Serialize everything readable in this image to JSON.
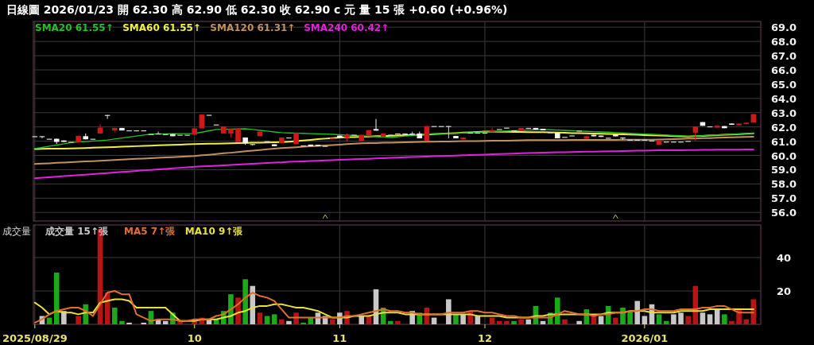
{
  "chart_data": [
    {
      "type": "candlestick",
      "title": "日線圖  2026/01/23  開 62.30  高 62.90  低 62.30  收 62.90 c 元  量 15 張  +0.60 (+0.96%)",
      "categories": [
        "2025/08/29",
        null,
        null,
        null,
        null,
        null,
        null,
        null,
        null,
        null,
        null,
        null,
        null,
        null,
        null,
        null,
        null,
        null,
        null,
        null,
        null,
        null,
        "10",
        null,
        null,
        null,
        null,
        null,
        null,
        null,
        null,
        null,
        null,
        null,
        null,
        null,
        null,
        null,
        null,
        null,
        null,
        null,
        "11",
        null,
        null,
        null,
        null,
        null,
        null,
        null,
        null,
        null,
        null,
        null,
        null,
        null,
        null,
        null,
        null,
        null,
        null,
        null,
        "12",
        null,
        null,
        null,
        null,
        null,
        null,
        null,
        null,
        null,
        null,
        null,
        null,
        null,
        null,
        null,
        null,
        null,
        null,
        null,
        null,
        null,
        "2026/01",
        null,
        null,
        null,
        null,
        null,
        null,
        null,
        null,
        null,
        null,
        null,
        null,
        null,
        null,
        null
      ],
      "ohlc": [
        [
          61.35,
          61.35,
          61.35,
          61.35
        ],
        [
          61.35,
          61.35,
          61.2,
          61.35
        ],
        [
          61.17,
          61.17,
          61.17,
          61.17
        ],
        [
          61.17,
          61.17,
          60.8,
          60.95
        ],
        [
          61.05,
          61.05,
          60.95,
          60.95
        ],
        [
          60.95,
          60.95,
          60.95,
          60.95
        ],
        [
          60.93,
          61.4,
          60.93,
          61.37
        ],
        [
          61.35,
          61.54,
          61.13,
          61.13
        ],
        [
          61.17,
          61.17,
          61.17,
          61.17
        ],
        [
          61.54,
          62.19,
          61.54,
          61.95
        ],
        [
          62.84,
          62.84,
          62.56,
          62.84
        ],
        [
          61.75,
          61.93,
          61.6,
          61.93
        ],
        [
          61.93,
          61.93,
          61.75,
          61.75
        ],
        [
          61.76,
          61.76,
          61.76,
          61.76
        ],
        [
          61.76,
          61.76,
          61.76,
          61.76
        ],
        [
          61.76,
          61.76,
          61.76,
          61.76
        ],
        [
          61.5,
          61.5,
          61.5,
          61.5
        ],
        [
          61.54,
          61.67,
          61.54,
          61.54
        ],
        [
          61.5,
          61.5,
          61.5,
          61.5
        ],
        [
          61.5,
          61.5,
          61.35,
          61.35
        ],
        [
          61.45,
          61.45,
          61.45,
          61.45
        ],
        [
          61.45,
          61.45,
          61.45,
          61.45
        ],
        [
          61.45,
          61.9,
          61.45,
          61.9
        ],
        [
          61.9,
          62.87,
          61.9,
          62.87
        ],
        [
          62.85,
          62.85,
          62.85,
          62.85
        ],
        [
          62.17,
          62.17,
          62.17,
          62.17
        ],
        [
          61.54,
          62.04,
          61.54,
          62.04
        ],
        [
          61.54,
          61.85,
          61.26,
          61.85
        ],
        [
          60.93,
          61.9,
          60.93,
          61.9
        ],
        [
          61.26,
          61.26,
          60.74,
          60.85
        ],
        [
          60.8,
          60.8,
          60.7,
          60.8
        ],
        [
          61.35,
          61.67,
          61.35,
          61.67
        ],
        [
          61.0,
          61.0,
          61.0,
          61.0
        ],
        [
          60.78,
          60.78,
          60.65,
          60.65
        ],
        [
          60.85,
          61.26,
          60.85,
          61.26
        ],
        [
          61.26,
          61.26,
          61.26,
          61.26
        ],
        [
          60.8,
          61.58,
          60.8,
          61.58
        ],
        [
          60.7,
          60.7,
          60.7,
          60.7
        ],
        [
          60.76,
          60.76,
          60.65,
          60.65
        ],
        [
          60.74,
          60.74,
          60.65,
          60.65
        ],
        [
          60.67,
          60.67,
          60.67,
          60.67
        ],
        [
          61.22,
          61.22,
          61.22,
          61.22
        ],
        [
          61.39,
          61.39,
          61.24,
          61.24
        ],
        [
          61.26,
          61.54,
          60.98,
          61.48
        ],
        [
          61.45,
          61.45,
          61.45,
          61.45
        ],
        [
          61.02,
          61.45,
          61.02,
          61.45
        ],
        [
          61.41,
          61.78,
          61.41,
          61.78
        ],
        [
          61.85,
          62.56,
          61.74,
          61.74
        ],
        [
          61.3,
          61.54,
          61.3,
          61.54
        ],
        [
          61.45,
          61.45,
          61.45,
          61.45
        ],
        [
          61.54,
          61.54,
          61.54,
          61.54
        ],
        [
          61.54,
          61.54,
          61.54,
          61.54
        ],
        [
          61.54,
          61.67,
          61.4,
          61.54
        ],
        [
          61.54,
          61.67,
          61.2,
          61.2
        ],
        [
          61.02,
          62.06,
          61.02,
          62.06
        ],
        [
          62.06,
          62.06,
          62.06,
          62.06
        ],
        [
          62.06,
          62.06,
          62.06,
          62.06
        ],
        [
          62.06,
          62.06,
          61.2,
          62.06
        ],
        [
          61.37,
          61.37,
          61.2,
          61.2
        ],
        [
          61.13,
          61.26,
          61.13,
          61.26
        ],
        [
          61.6,
          61.6,
          61.6,
          61.6
        ],
        [
          61.6,
          61.6,
          61.6,
          61.6
        ],
        [
          61.6,
          61.6,
          61.6,
          61.6
        ],
        [
          61.67,
          61.95,
          61.67,
          61.78
        ],
        [
          61.85,
          61.85,
          61.85,
          61.85
        ],
        [
          61.95,
          61.95,
          61.95,
          61.95
        ],
        [
          61.76,
          61.76,
          61.76,
          61.76
        ],
        [
          61.72,
          61.93,
          61.72,
          61.93
        ],
        [
          61.93,
          61.93,
          61.93,
          61.93
        ],
        [
          61.93,
          61.93,
          61.82,
          61.82
        ],
        [
          61.87,
          61.87,
          61.76,
          61.76
        ],
        [
          61.63,
          61.63,
          61.63,
          61.63
        ],
        [
          61.6,
          61.6,
          61.2,
          61.2
        ],
        [
          61.3,
          61.3,
          61.3,
          61.3
        ],
        [
          61.4,
          61.4,
          61.4,
          61.4
        ],
        [
          61.74,
          61.74,
          61.74,
          61.74
        ],
        [
          61.17,
          61.4,
          61.17,
          61.35
        ],
        [
          61.45,
          61.45,
          61.34,
          61.34
        ],
        [
          61.39,
          61.39,
          61.3,
          61.3
        ],
        [
          61.24,
          61.24,
          61.24,
          61.24
        ],
        [
          61.47,
          61.47,
          61.34,
          61.34
        ],
        [
          61.26,
          61.26,
          61.08,
          61.26
        ],
        [
          61.1,
          61.1,
          61.1,
          61.1
        ],
        [
          61.1,
          61.1,
          61.1,
          61.1
        ],
        [
          61.1,
          61.1,
          61.1,
          61.1
        ],
        [
          61.05,
          61.05,
          61.05,
          61.05
        ],
        [
          60.74,
          61.06,
          60.74,
          61.06
        ],
        [
          60.97,
          60.97,
          60.97,
          60.97
        ],
        [
          60.97,
          60.97,
          60.97,
          60.97
        ],
        [
          60.97,
          60.97,
          60.97,
          60.97
        ],
        [
          61.02,
          61.02,
          61.02,
          61.02
        ],
        [
          61.6,
          62.04,
          61.02,
          62.04
        ],
        [
          62.34,
          62.34,
          62.08,
          62.08
        ],
        [
          62.04,
          62.04,
          62.04,
          62.04
        ],
        [
          61.95,
          62.08,
          61.95,
          62.08
        ],
        [
          62.06,
          62.06,
          61.91,
          61.91
        ],
        [
          62.24,
          62.24,
          62.15,
          62.15
        ],
        [
          62.11,
          62.24,
          62.11,
          62.24
        ],
        [
          62.2,
          62.3,
          62.2,
          62.3
        ],
        [
          62.3,
          62.9,
          62.3,
          62.9
        ]
      ],
      "colors": [
        "#d8d8d8",
        "#d8d8d8",
        "#d8d8d8",
        "#f4f4f4",
        "#f4f4f4",
        "#d8d8d8",
        "#d01818",
        "#f4f4f4",
        "#d8d8d8",
        "#d01818",
        "#d8d8d8",
        "#d01818",
        "#f4f4f4",
        "#d8d8d8",
        "#d8d8d8",
        "#d8d8d8",
        "#d8d8d8",
        "#d8d8d8",
        "#d8d8d8",
        "#f4f4f4",
        "#d8d8d8",
        "#d8d8d8",
        "#d01818",
        "#d01818",
        "#d8d8d8",
        "#d8d8d8",
        "#d01818",
        "#d01818",
        "#d01818",
        "#f4f4f4",
        "#d8d8d8",
        "#d01818",
        "#d8d8d8",
        "#f4f4f4",
        "#d01818",
        "#d8d8d8",
        "#d01818",
        "#d8d8d8",
        "#f4f4f4",
        "#f4f4f4",
        "#d8d8d8",
        "#d01818",
        "#f4f4f4",
        "#d01818",
        "#d8d8d8",
        "#d01818",
        "#d01818",
        "#f4f4f4",
        "#d01818",
        "#d8d8d8",
        "#d8d8d8",
        "#d8d8d8",
        "#d8d8d8",
        "#f4f4f4",
        "#d01818",
        "#d8d8d8",
        "#d8d8d8",
        "#d8d8d8",
        "#f4f4f4",
        "#d01818",
        "#d8d8d8",
        "#d8d8d8",
        "#d8d8d8",
        "#d01818",
        "#d8d8d8",
        "#d8d8d8",
        "#d8d8d8",
        "#d01818",
        "#d8d8d8",
        "#f4f4f4",
        "#f4f4f4",
        "#d8d8d8",
        "#f4f4f4",
        "#d8d8d8",
        "#d8d8d8",
        "#d8d8d8",
        "#d01818",
        "#f4f4f4",
        "#f4f4f4",
        "#d8d8d8",
        "#f4f4f4",
        "#d8d8d8",
        "#d8d8d8",
        "#d8d8d8",
        "#d8d8d8",
        "#d8d8d8",
        "#d01818",
        "#d8d8d8",
        "#d8d8d8",
        "#d8d8d8",
        "#d8d8d8",
        "#d01818",
        "#f4f4f4",
        "#d8d8d8",
        "#d01818",
        "#f4f4f4",
        "#f4f4f4",
        "#d01818",
        "#d01818",
        "#d01818"
      ],
      "series": [
        {
          "name": "SMA20 61.55↑",
          "type": "line",
          "color": "#22c022",
          "values": [
            60.48,
            60.56,
            60.65,
            60.73,
            60.82,
            60.9,
            60.94,
            60.97,
            61.01,
            61.04,
            61.08,
            61.15,
            61.22,
            61.29,
            61.36,
            61.43,
            61.5,
            61.51,
            61.51,
            61.52,
            61.53,
            61.53,
            61.54,
            61.63,
            61.73,
            61.82,
            61.83,
            61.85,
            61.86,
            61.87,
            61.82,
            61.76,
            61.71,
            61.65,
            61.6,
            61.58,
            61.57,
            61.55,
            61.53,
            61.51,
            61.5,
            61.48,
            61.45,
            61.43,
            61.4,
            61.37,
            61.35,
            61.32,
            61.29,
            61.26,
            61.31,
            61.36,
            61.4,
            61.45,
            61.5,
            61.52,
            61.53,
            61.55,
            61.56,
            61.58,
            61.6,
            61.62,
            61.65,
            61.67,
            61.69,
            61.71,
            61.73,
            61.76,
            61.78,
            61.8,
            61.82,
            61.8,
            61.78,
            61.76,
            61.74,
            61.71,
            61.69,
            61.67,
            61.65,
            61.63,
            61.6,
            61.58,
            61.55,
            61.53,
            61.5,
            61.48,
            61.45,
            61.43,
            61.4,
            61.38,
            61.35,
            61.37,
            61.39,
            61.42,
            61.44,
            61.46,
            61.48,
            61.5,
            61.53,
            61.55
          ]
        },
        {
          "name": "SMA60 61.55↑",
          "type": "line",
          "color": "#f0f040",
          "values": [
            60.45,
            60.46,
            60.47,
            60.47,
            60.48,
            60.49,
            60.5,
            60.52,
            60.54,
            60.56,
            60.58,
            60.59,
            60.61,
            60.63,
            60.65,
            60.67,
            60.69,
            60.71,
            60.73,
            60.74,
            60.76,
            60.78,
            60.8,
            60.81,
            60.82,
            60.83,
            60.84,
            60.85,
            60.86,
            60.88,
            60.89,
            60.9,
            60.91,
            60.92,
            60.93,
            60.97,
            61.01,
            61.05,
            61.09,
            61.14,
            61.18,
            61.22,
            61.26,
            61.28,
            61.29,
            61.31,
            61.33,
            61.35,
            61.36,
            61.38,
            61.4,
            61.42,
            61.43,
            61.45,
            61.47,
            61.5,
            61.52,
            61.55,
            61.57,
            61.6,
            61.62,
            61.65,
            61.67,
            61.67,
            61.66,
            61.66,
            61.65,
            61.65,
            61.64,
            61.64,
            61.63,
            61.62,
            61.6,
            61.59,
            61.57,
            61.56,
            61.55,
            61.53,
            61.52,
            61.51,
            61.49,
            61.48,
            61.46,
            61.45,
            61.43,
            61.41,
            61.39,
            61.38,
            61.36,
            61.34,
            61.32,
            61.35,
            61.37,
            61.4,
            61.42,
            61.45,
            61.47,
            61.5,
            61.52,
            61.55
          ]
        },
        {
          "name": "SMA120 61.31↑",
          "type": "line",
          "color": "#c09060",
          "values": [
            59.4,
            59.43,
            59.45,
            59.48,
            59.5,
            59.53,
            59.55,
            59.58,
            59.6,
            59.63,
            59.65,
            59.68,
            59.71,
            59.73,
            59.76,
            59.78,
            59.81,
            59.83,
            59.86,
            59.88,
            59.91,
            59.93,
            59.96,
            60.01,
            60.05,
            60.1,
            60.15,
            60.19,
            60.24,
            60.29,
            60.33,
            60.38,
            60.43,
            60.47,
            60.52,
            60.55,
            60.58,
            60.61,
            60.64,
            60.67,
            60.7,
            60.73,
            60.76,
            60.79,
            60.82,
            60.85,
            60.86,
            60.87,
            60.89,
            60.9,
            60.91,
            60.92,
            60.93,
            60.95,
            60.96,
            60.97,
            60.98,
            60.98,
            60.99,
            61.0,
            61.01,
            61.01,
            61.02,
            61.03,
            61.04,
            61.04,
            61.05,
            61.06,
            61.07,
            61.07,
            61.08,
            61.08,
            61.08,
            61.08,
            61.09,
            61.09,
            61.09,
            61.09,
            61.09,
            61.09,
            61.09,
            61.1,
            61.1,
            61.1,
            61.1,
            61.1,
            61.12,
            61.13,
            61.15,
            61.16,
            61.18,
            61.19,
            61.21,
            61.22,
            61.24,
            61.25,
            61.27,
            61.28,
            61.3,
            61.31
          ]
        },
        {
          "name": "SMA240 60.42↑",
          "type": "line",
          "color": "#e020e0",
          "values": [
            58.4,
            58.44,
            58.47,
            58.51,
            58.55,
            58.58,
            58.62,
            58.65,
            58.69,
            58.73,
            58.76,
            58.8,
            58.84,
            58.87,
            58.91,
            58.95,
            58.98,
            59.02,
            59.05,
            59.09,
            59.13,
            59.16,
            59.2,
            59.23,
            59.25,
            59.28,
            59.31,
            59.33,
            59.36,
            59.39,
            59.42,
            59.44,
            59.47,
            59.5,
            59.52,
            59.55,
            59.57,
            59.59,
            59.61,
            59.63,
            59.65,
            59.67,
            59.69,
            59.71,
            59.73,
            59.75,
            59.77,
            59.79,
            59.81,
            59.83,
            59.85,
            59.87,
            59.89,
            59.9,
            59.92,
            59.94,
            59.96,
            59.97,
            59.99,
            60.01,
            60.03,
            60.04,
            60.06,
            60.08,
            60.1,
            60.11,
            60.13,
            60.15,
            60.17,
            60.18,
            60.2,
            60.21,
            60.22,
            60.23,
            60.24,
            60.25,
            60.26,
            60.27,
            60.28,
            60.29,
            60.3,
            60.31,
            60.32,
            60.33,
            60.34,
            60.35,
            60.36,
            60.36,
            60.37,
            60.37,
            60.38,
            60.38,
            60.39,
            60.39,
            60.4,
            60.4,
            60.41,
            60.41,
            60.42,
            60.42
          ]
        }
      ],
      "ylim": [
        55.4,
        69.4
      ],
      "yticks": [
        {
          "value": 56,
          "label": "56.0"
        },
        {
          "value": 57,
          "label": "57.0"
        },
        {
          "value": 58,
          "label": "58.0"
        },
        {
          "value": 59,
          "label": "59.0"
        },
        {
          "value": 60,
          "label": "60.0"
        },
        {
          "value": 61,
          "label": "61.0"
        },
        {
          "value": 62,
          "label": "62.0"
        },
        {
          "value": 63,
          "label": "63.0"
        },
        {
          "value": 64,
          "label": "64.0"
        },
        {
          "value": 65,
          "label": "65.0"
        },
        {
          "value": 66,
          "label": "66.0"
        },
        {
          "value": 67,
          "label": "67.0"
        },
        {
          "value": 68,
          "label": "68.0"
        },
        {
          "value": 69,
          "label": "69.0"
        }
      ],
      "tick_labels": "y",
      "grid": true,
      "legend": "top left"
    },
    {
      "type": "bar",
      "title": "成交量",
      "categories": [
        "2025/08/29",
        null,
        null,
        null,
        null,
        null,
        null,
        null,
        null,
        null,
        null,
        null,
        null,
        null,
        null,
        null,
        null,
        null,
        null,
        null,
        null,
        null,
        "10",
        null,
        null,
        null,
        null,
        null,
        null,
        null,
        null,
        null,
        null,
        null,
        null,
        null,
        null,
        null,
        null,
        null,
        null,
        null,
        "11",
        null,
        null,
        null,
        null,
        null,
        null,
        null,
        null,
        null,
        null,
        null,
        null,
        null,
        null,
        null,
        null,
        null,
        null,
        null,
        "12",
        null,
        null,
        null,
        null,
        null,
        null,
        null,
        null,
        null,
        null,
        null,
        null,
        null,
        null,
        null,
        null,
        null,
        null,
        null,
        null,
        null,
        "2026/01",
        null,
        null,
        null,
        null,
        null,
        null,
        null,
        null,
        null,
        null,
        null,
        null,
        null,
        null,
        null
      ],
      "series": [
        {
          "name": "成交量 15↑張",
          "type": "bar",
          "color": "#c8c8c8",
          "values": [
            null,
            5,
            4,
            31,
            8,
            null,
            5,
            12,
            null,
            57,
            19,
            10,
            2,
            1,
            null,
            1,
            8,
            3,
            2,
            7,
            2,
            null,
            2,
            4,
            3,
            3,
            8,
            18,
            16,
            27,
            23,
            7,
            5,
            6,
            3,
            2,
            7,
            1,
            4,
            7,
            5,
            3,
            7,
            8,
            null,
            5,
            5,
            21,
            10,
            2,
            2,
            null,
            8,
            7,
            10,
            4,
            null,
            15,
            6,
            6,
            8,
            5,
            null,
            4,
            2,
            2,
            2,
            3,
            3,
            11,
            2,
            7,
            16,
            3,
            null,
            2,
            9,
            6,
            5,
            11,
            4,
            10,
            8,
            14,
            5,
            12,
            6,
            2,
            6,
            7,
            5,
            23,
            7,
            6,
            9,
            6,
            2,
            9,
            3,
            15
          ],
          "colors": [
            null,
            "#c8c8c8",
            "#1aaa1a",
            "#1aaa1a",
            "#c8c8c8",
            null,
            "#b81414",
            "#1aaa1a",
            null,
            "#b81414",
            "#b81414",
            "#1aaa1a",
            "#1aaa1a",
            "#c8c8c8",
            null,
            "#c8c8c8",
            "#1aaa1a",
            "#c8c8c8",
            "#c8c8c8",
            "#1aaa1a",
            "#b81414",
            null,
            "#b81414",
            "#b81414",
            "#c8c8c8",
            "#1aaa1a",
            "#1aaa1a",
            "#1aaa1a",
            "#b81414",
            "#1aaa1a",
            "#c8c8c8",
            "#b81414",
            "#1aaa1a",
            "#1aaa1a",
            "#b81414",
            "#c8c8c8",
            "#b81414",
            "#1aaa1a",
            "#1aaa1a",
            "#c8c8c8",
            "#c8c8c8",
            "#b81414",
            "#c8c8c8",
            "#b81414",
            null,
            "#c8c8c8",
            "#b81414",
            "#c8c8c8",
            "#1aaa1a",
            "#1aaa1a",
            "#b81414",
            null,
            "#c8c8c8",
            "#1aaa1a",
            "#b81414",
            "#c8c8c8",
            null,
            "#c8c8c8",
            "#1aaa1a",
            "#c8c8c8",
            "#b81414",
            "#c8c8c8",
            null,
            "#b81414",
            "#b81414",
            "#b81414",
            "#1aaa1a",
            "#b81414",
            "#c8c8c8",
            "#1aaa1a",
            "#c8c8c8",
            "#1aaa1a",
            "#1aaa1a",
            "#b81414",
            null,
            "#c8c8c8",
            "#1aaa1a",
            "#b81414",
            "#c8c8c8",
            "#1aaa1a",
            "#b81414",
            "#1aaa1a",
            "#1aaa1a",
            "#c8c8c8",
            "#c8c8c8",
            "#c8c8c8",
            "#1aaa1a",
            "#1aaa1a",
            "#c8c8c8",
            "#c8c8c8",
            "#b81414",
            "#b81414",
            "#c8c8c8",
            "#c8c8c8",
            "#c8c8c8",
            "#1aaa1a",
            "#b81414",
            "#b81414",
            "#b81414",
            "#b81414"
          ]
        },
        {
          "name": "MA5 7↑張",
          "type": "line",
          "color": "#e07030",
          "values": [
            1,
            3,
            6,
            8,
            9,
            10,
            10,
            8,
            5,
            12,
            19,
            20,
            18,
            18,
            6,
            4,
            2,
            3,
            3,
            3,
            2,
            2,
            3,
            3,
            3,
            5,
            6,
            9,
            12,
            16,
            19,
            17,
            16,
            14,
            9,
            4,
            4,
            4,
            4,
            4,
            4,
            4,
            4,
            5,
            5,
            6,
            7,
            8,
            9,
            8,
            8,
            7,
            7,
            6,
            6,
            6,
            6,
            7,
            7,
            7,
            8,
            8,
            7,
            7,
            6,
            5,
            5,
            4,
            4,
            4,
            4,
            4,
            6,
            8,
            7,
            6,
            6,
            5,
            6,
            6,
            7,
            7,
            8,
            8,
            9,
            9,
            8,
            8,
            8,
            9,
            9,
            9,
            10,
            10,
            11,
            11,
            9,
            7,
            7,
            7
          ]
        },
        {
          "name": "MA10 9↑張",
          "type": "line",
          "color": "#e8e040",
          "values": [
            13,
            10,
            6,
            8,
            7,
            7,
            6,
            7,
            7,
            13,
            14,
            15,
            15,
            14,
            10,
            10,
            10,
            10,
            10,
            6,
            2,
            2,
            2,
            3,
            3,
            3,
            4,
            5,
            7,
            8,
            10,
            11,
            11,
            12,
            12,
            11,
            10,
            10,
            9,
            8,
            6,
            4,
            4,
            4,
            5,
            5,
            5,
            6,
            7,
            7,
            7,
            6,
            6,
            6,
            6,
            6,
            6,
            6,
            6,
            6,
            6,
            5,
            5,
            5,
            5,
            4,
            4,
            4,
            4,
            5,
            5,
            6,
            6,
            6,
            6,
            6,
            6,
            6,
            6,
            7,
            7,
            7,
            8,
            8,
            8,
            7,
            7,
            7,
            7,
            8,
            8,
            8,
            8,
            9,
            9,
            9,
            9,
            9,
            9,
            9
          ]
        }
      ],
      "ylim": [
        0,
        59.5
      ],
      "yticks": [
        20,
        40
      ],
      "grid": true,
      "legend": "top left"
    }
  ]
}
